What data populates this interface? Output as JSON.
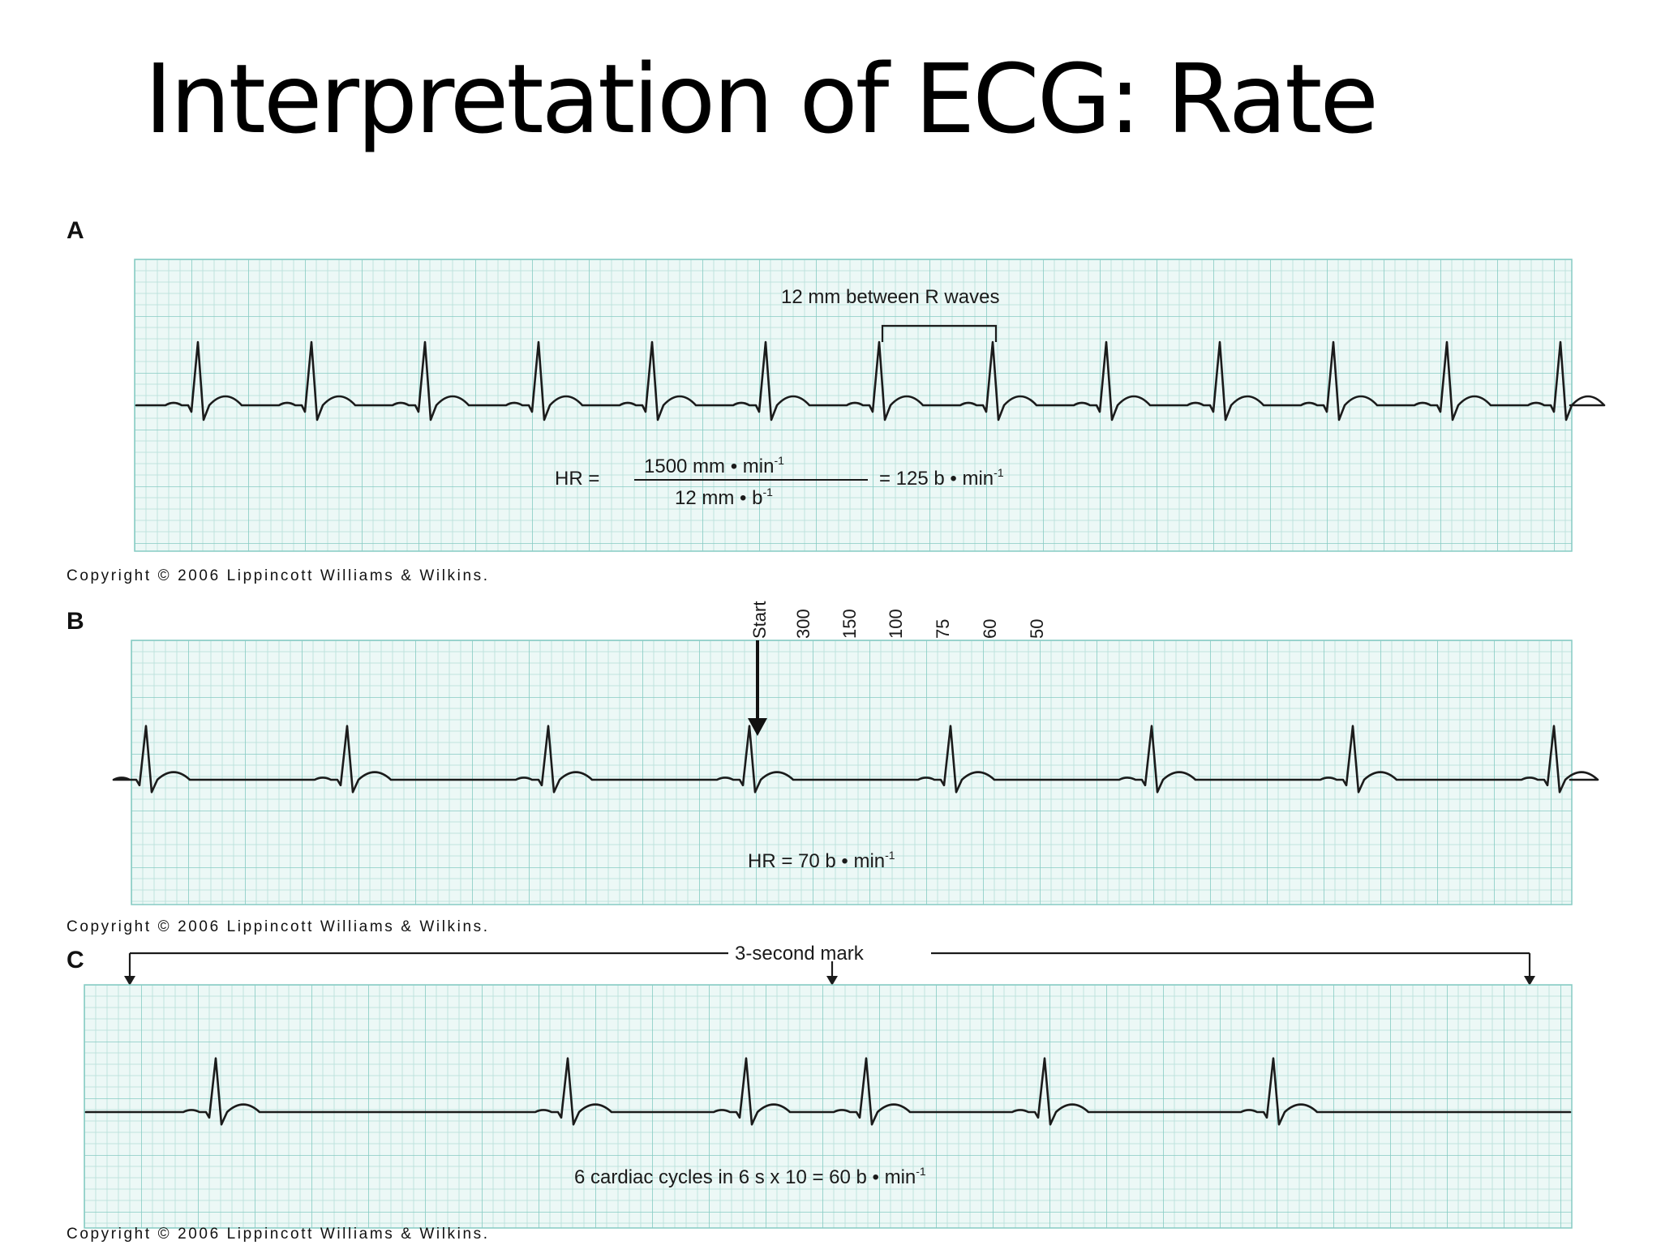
{
  "title": "Interpretation of ECG: Rate",
  "colors": {
    "paper": "#ecf8f6",
    "grid_minor": "#bfe3de",
    "grid_major": "#86cbc3",
    "trace": "#1b1b1b",
    "bracket_a": "#2a9bb5"
  },
  "panels": [
    {
      "letter": "A",
      "annotation_top": "12 mm between R waves",
      "formula": {
        "lhs": "HR =",
        "numerator": "1500 mm • min",
        "numerator_sup": "-1",
        "denominator": "12 mm • b",
        "denominator_sup": "-1",
        "result": "= 125 b • min",
        "result_sup": "-1"
      },
      "copyright": "Copyright © 2006 Lippincott Williams & Wilkins."
    },
    {
      "letter": "B",
      "scale_labels": [
        "Start",
        "300",
        "150",
        "100",
        "75",
        "60",
        "50"
      ],
      "annotation_bottom": "HR = 70 b • min",
      "annotation_bottom_sup": "-1",
      "copyright": "Copyright © 2006 Lippincott Williams & Wilkins."
    },
    {
      "letter": "C",
      "mark_label": "3-second mark",
      "annotation_bottom": "6 cardiac cycles in 6 s x 10 = 60 b • min",
      "annotation_bottom_sup": "-1",
      "copyright": "Copyright © 2006 Lippincott Williams & Wilkins."
    }
  ]
}
